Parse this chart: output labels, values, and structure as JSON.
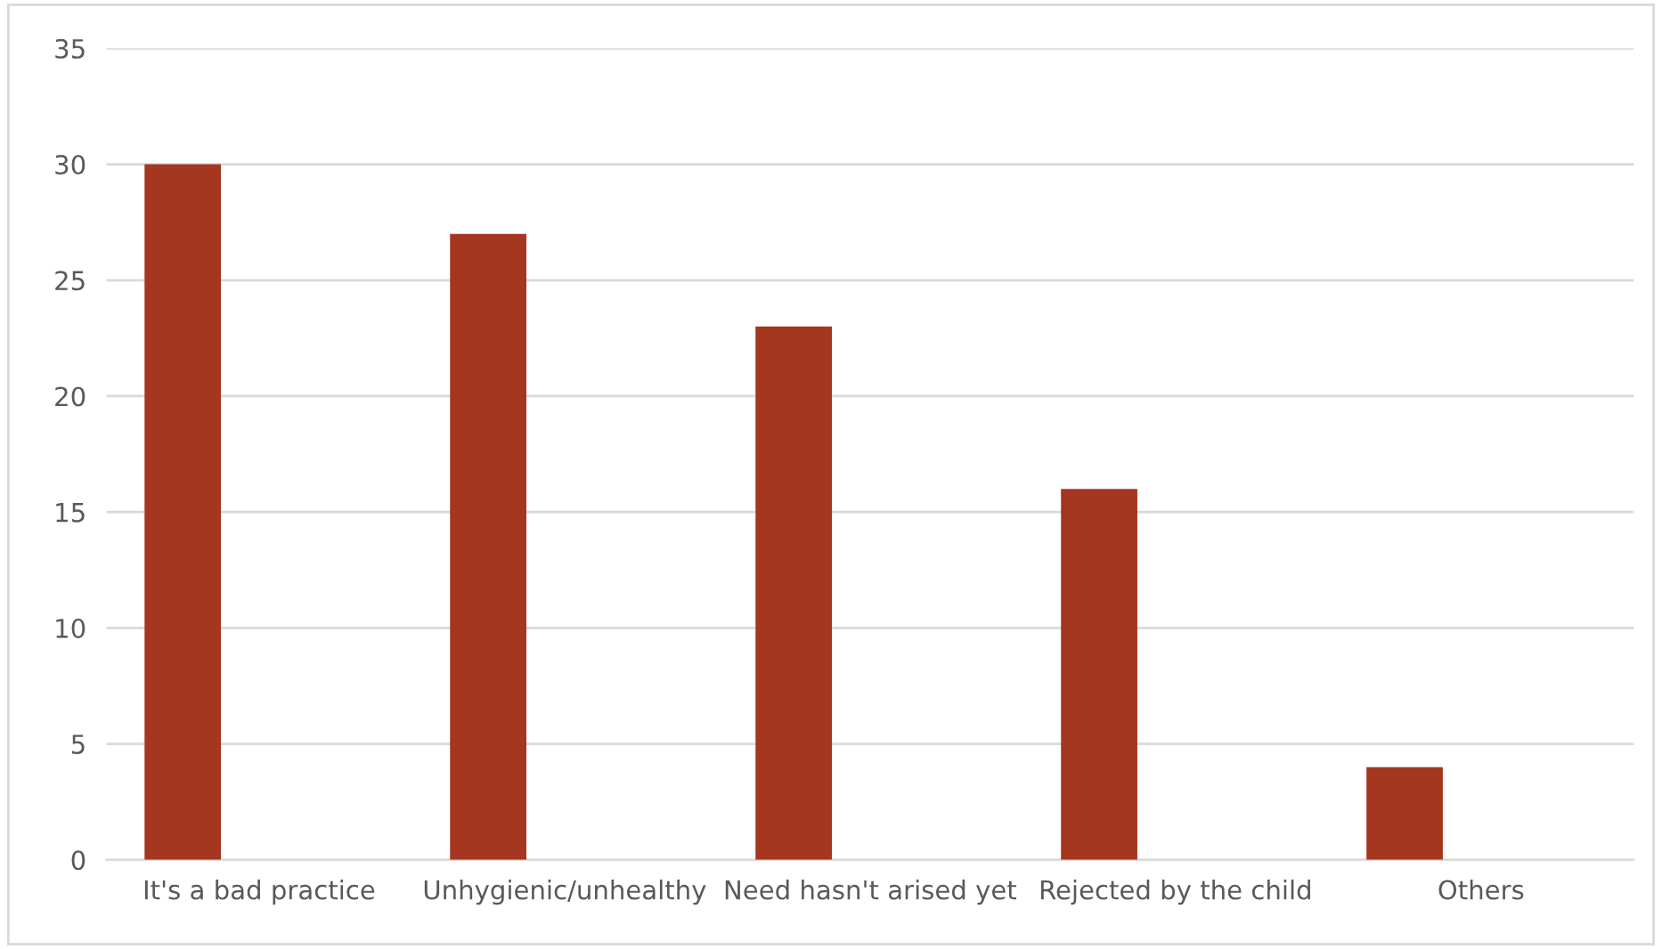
{
  "chart_data": {
    "type": "bar",
    "categories": [
      "It's a bad practice",
      "Unhygienic/unhealthy",
      "Need hasn't arised yet",
      "Rejected by the child",
      "Others"
    ],
    "values": [
      30,
      27,
      23,
      16,
      4
    ],
    "color": "#a5361f",
    "ylim": [
      0,
      35
    ],
    "yticks": [
      0,
      5,
      10,
      15,
      20,
      25,
      30,
      35
    ],
    "grid": "y",
    "legend": false
  }
}
